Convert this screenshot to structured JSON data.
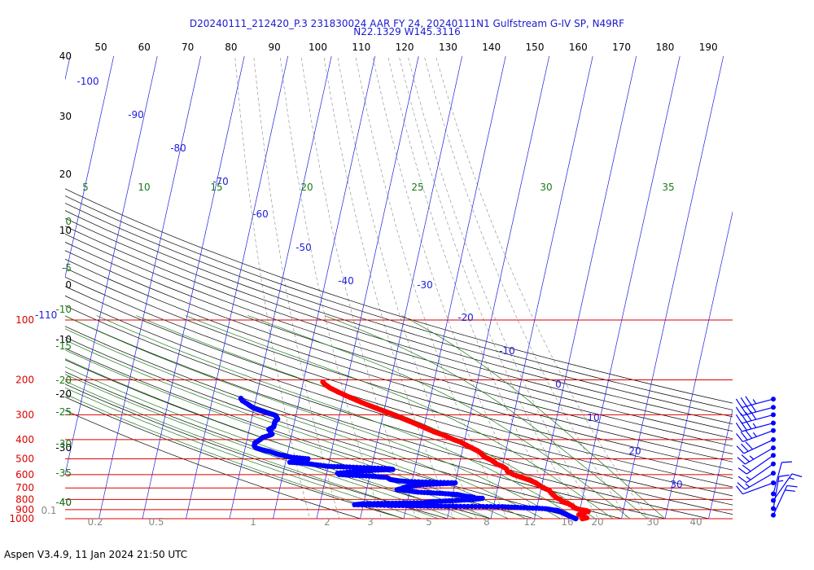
{
  "chart_data": {
    "type": "skew-t log-p sounding",
    "title_line1": "D20240111_212420_P.3 231830024 AAR FY 24, 20240111N1 Gulfstream G-IV SP, N49RF",
    "title_line2": "N22.1329 W145.3116",
    "top_axis_ticks": [
      "50",
      "60",
      "70",
      "80",
      "90",
      "100",
      "110",
      "120",
      "130",
      "140",
      "150",
      "160",
      "170",
      "180",
      "190"
    ],
    "left_axis_labels": [
      "40",
      "30",
      "20",
      "10",
      "0",
      "-10",
      "-20",
      "-30",
      "-40"
    ],
    "pressure_labels": [
      "100",
      "200",
      "300",
      "400",
      "500",
      "600",
      "700",
      "800",
      "900",
      "1000"
    ],
    "pressure_label_extra": "-110",
    "pressure_levels_hpa": [
      100,
      200,
      300,
      400,
      500,
      600,
      700,
      800,
      900,
      1000
    ],
    "isotherm_labels": [
      "-100",
      "-90",
      "-80",
      "-70",
      "-60",
      "-50",
      "-40",
      "-30",
      "-20",
      "-10",
      "0",
      "10",
      "20",
      "30"
    ],
    "isotherms_c": [
      -100,
      -90,
      -80,
      -70,
      -60,
      -50,
      -40,
      -30,
      -20,
      -10,
      0,
      10,
      20,
      30
    ],
    "mixing_ratio_labels": [
      "0.1",
      "0.2",
      "0.5",
      "1",
      "2",
      "3",
      "5",
      "8",
      "12",
      "16",
      "20",
      "30",
      "40"
    ],
    "theta_e_labels": [
      "5",
      "10",
      "15",
      "20",
      "25",
      "30",
      "35"
    ],
    "theta_w_labels": [
      "0",
      "-5",
      "-10",
      "-15",
      "-20",
      "-25",
      "-30",
      "-35",
      "-40"
    ],
    "temperature_profile": [
      {
        "p": 1000,
        "t": 21.0
      },
      {
        "p": 990,
        "t": 22.0
      },
      {
        "p": 970,
        "t": 21.0
      },
      {
        "p": 955,
        "t": 20.0
      },
      {
        "p": 940,
        "t": 20.5
      },
      {
        "p": 920,
        "t": 22.0
      },
      {
        "p": 910,
        "t": 21.5
      },
      {
        "p": 900,
        "t": 20.0
      },
      {
        "p": 880,
        "t": 18.5
      },
      {
        "p": 860,
        "t": 18.0
      },
      {
        "p": 840,
        "t": 17.0
      },
      {
        "p": 820,
        "t": 15.5
      },
      {
        "p": 800,
        "t": 15.0
      },
      {
        "p": 785,
        "t": 14.0
      },
      {
        "p": 770,
        "t": 13.5
      },
      {
        "p": 740,
        "t": 12.5
      },
      {
        "p": 720,
        "t": 12.0
      },
      {
        "p": 700,
        "t": 10.5
      },
      {
        "p": 680,
        "t": 9.5
      },
      {
        "p": 660,
        "t": 8.5
      },
      {
        "p": 640,
        "t": 7.0
      },
      {
        "p": 620,
        "t": 5.0
      },
      {
        "p": 600,
        "t": 3.0
      },
      {
        "p": 580,
        "t": 1.5
      },
      {
        "p": 560,
        "t": 1.0
      },
      {
        "p": 545,
        "t": 0.0
      },
      {
        "p": 530,
        "t": -1.5
      },
      {
        "p": 520,
        "t": -2.0
      },
      {
        "p": 505,
        "t": -3.0
      },
      {
        "p": 490,
        "t": -4.5
      },
      {
        "p": 480,
        "t": -5.0
      },
      {
        "p": 470,
        "t": -5.5
      },
      {
        "p": 455,
        "t": -6.5
      },
      {
        "p": 440,
        "t": -8.0
      },
      {
        "p": 425,
        "t": -9.5
      },
      {
        "p": 410,
        "t": -11.0
      },
      {
        "p": 400,
        "t": -12.5
      },
      {
        "p": 380,
        "t": -15.0
      },
      {
        "p": 365,
        "t": -17.5
      },
      {
        "p": 350,
        "t": -19.5
      },
      {
        "p": 330,
        "t": -22.5
      },
      {
        "p": 315,
        "t": -25.0
      },
      {
        "p": 300,
        "t": -27.5
      },
      {
        "p": 290,
        "t": -29.5
      },
      {
        "p": 275,
        "t": -32.5
      },
      {
        "p": 260,
        "t": -35.5
      },
      {
        "p": 250,
        "t": -37.5
      },
      {
        "p": 240,
        "t": -39.5
      },
      {
        "p": 230,
        "t": -41.5
      },
      {
        "p": 220,
        "t": -43.5
      },
      {
        "p": 210,
        "t": -45.0
      },
      {
        "p": 205,
        "t": -45.5
      }
    ],
    "dewpoint_profile": [
      {
        "p": 1000,
        "t": 19.5
      },
      {
        "p": 970,
        "t": 18.0
      },
      {
        "p": 940,
        "t": 16.5
      },
      {
        "p": 910,
        "t": 15.0
      },
      {
        "p": 905,
        "t": 14.0
      },
      {
        "p": 890,
        "t": 12.0
      },
      {
        "p": 880,
        "t": 7.0
      },
      {
        "p": 870,
        "t": 2.0
      },
      {
        "p": 865,
        "t": -12.0
      },
      {
        "p": 860,
        "t": -20.0
      },
      {
        "p": 850,
        "t": -32.0
      },
      {
        "p": 840,
        "t": -30.0
      },
      {
        "p": 830,
        "t": -16.0
      },
      {
        "p": 820,
        "t": -14.0
      },
      {
        "p": 810,
        "t": -9.0
      },
      {
        "p": 800,
        "t": -5.0
      },
      {
        "p": 790,
        "t": -3.0
      },
      {
        "p": 785,
        "t": -6.0
      },
      {
        "p": 780,
        "t": -5.0
      },
      {
        "p": 770,
        "t": -7.0
      },
      {
        "p": 755,
        "t": -9.0
      },
      {
        "p": 745,
        "t": -13.0
      },
      {
        "p": 735,
        "t": -18.0
      },
      {
        "p": 725,
        "t": -20.0
      },
      {
        "p": 715,
        "t": -23.0
      },
      {
        "p": 705,
        "t": -22.0
      },
      {
        "p": 690,
        "t": -21.0
      },
      {
        "p": 675,
        "t": -18.0
      },
      {
        "p": 665,
        "t": -12.0
      },
      {
        "p": 660,
        "t": -10.0
      },
      {
        "p": 650,
        "t": -21.0
      },
      {
        "p": 645,
        "t": -23.0
      },
      {
        "p": 635,
        "t": -25.0
      },
      {
        "p": 620,
        "t": -26.0
      },
      {
        "p": 610,
        "t": -30.0
      },
      {
        "p": 600,
        "t": -37.0
      },
      {
        "p": 590,
        "t": -37.5
      },
      {
        "p": 580,
        "t": -34.0
      },
      {
        "p": 570,
        "t": -29.0
      },
      {
        "p": 565,
        "t": -25.0
      },
      {
        "p": 560,
        "t": -26.0
      },
      {
        "p": 550,
        "t": -35.0
      },
      {
        "p": 545,
        "t": -40.0
      },
      {
        "p": 535,
        "t": -43.0
      },
      {
        "p": 525,
        "t": -46.0
      },
      {
        "p": 520,
        "t": -49.0
      },
      {
        "p": 510,
        "t": -46.0
      },
      {
        "p": 500,
        "t": -45.0
      },
      {
        "p": 490,
        "t": -49.0
      },
      {
        "p": 475,
        "t": -52.0
      },
      {
        "p": 460,
        "t": -54.0
      },
      {
        "p": 450,
        "t": -56.0
      },
      {
        "p": 440,
        "t": -57.5
      },
      {
        "p": 430,
        "t": -58.0
      },
      {
        "p": 415,
        "t": -58.0
      },
      {
        "p": 400,
        "t": -57.0
      },
      {
        "p": 390,
        "t": -56.5
      },
      {
        "p": 380,
        "t": -55.0
      },
      {
        "p": 375,
        "t": -54.5
      },
      {
        "p": 365,
        "t": -55.0
      },
      {
        "p": 355,
        "t": -55.5
      },
      {
        "p": 345,
        "t": -54.5
      },
      {
        "p": 335,
        "t": -54.5
      },
      {
        "p": 325,
        "t": -54.5
      },
      {
        "p": 315,
        "t": -54.0
      },
      {
        "p": 305,
        "t": -54.5
      },
      {
        "p": 300,
        "t": -55.0
      },
      {
        "p": 292,
        "t": -57.0
      },
      {
        "p": 285,
        "t": -58.5
      },
      {
        "p": 278,
        "t": -60.0
      },
      {
        "p": 270,
        "t": -61.0
      },
      {
        "p": 262,
        "t": -62.0
      },
      {
        "p": 255,
        "t": -63.0
      },
      {
        "p": 248,
        "t": -63.5
      }
    ],
    "wind_barbs": [
      {
        "p": 250,
        "spd_kt": 35,
        "dir": 255
      },
      {
        "p": 275,
        "spd_kt": 40,
        "dir": 255
      },
      {
        "p": 300,
        "spd_kt": 40,
        "dir": 255
      },
      {
        "p": 330,
        "spd_kt": 35,
        "dir": 255
      },
      {
        "p": 360,
        "spd_kt": 35,
        "dir": 250
      },
      {
        "p": 400,
        "spd_kt": 30,
        "dir": 245
      },
      {
        "p": 440,
        "spd_kt": 25,
        "dir": 240
      },
      {
        "p": 480,
        "spd_kt": 20,
        "dir": 235
      },
      {
        "p": 530,
        "spd_kt": 15,
        "dir": 235
      },
      {
        "p": 590,
        "spd_kt": 15,
        "dir": 240
      },
      {
        "p": 660,
        "spd_kt": 10,
        "dir": 250
      },
      {
        "p": 750,
        "spd_kt": 10,
        "dir": 15
      },
      {
        "p": 810,
        "spd_kt": 15,
        "dir": 35
      },
      {
        "p": 890,
        "spd_kt": 15,
        "dir": 10
      },
      {
        "p": 960,
        "spd_kt": 20,
        "dir": 25
      }
    ],
    "colors": {
      "isobar": "#dd0000",
      "isotherm": "#2020dd",
      "dry_adiabat": "#000000",
      "moist_adiabat": "#1a7a1a",
      "mixing_ratio": "#888888",
      "temperature": "#ff0000",
      "dewpoint": "#0000ff",
      "title": "#1a1ad0"
    }
  },
  "footer": "Aspen V3.4.9, 11 Jan 2024  21:50 UTC"
}
